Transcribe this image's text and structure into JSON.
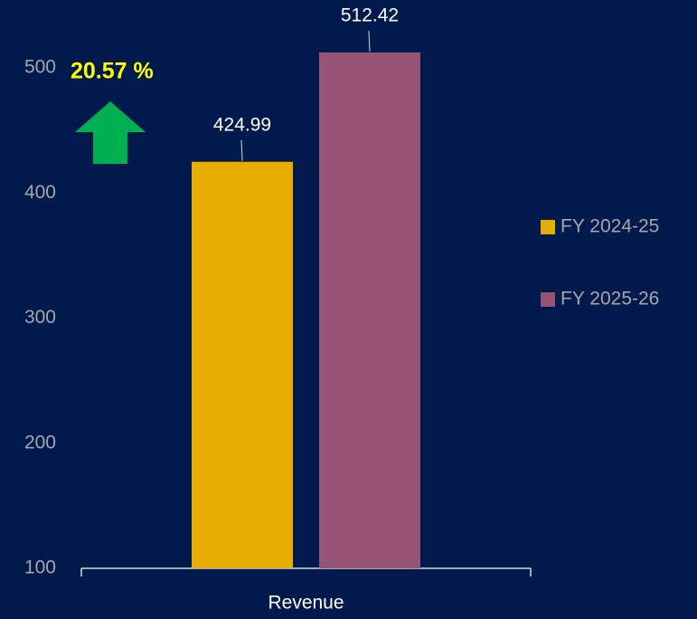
{
  "chart_data": {
    "type": "bar",
    "categories": [
      "Revenue"
    ],
    "series": [
      {
        "name": "FY 2024-25",
        "color": "#e6ac00",
        "values": [
          424.99
        ]
      },
      {
        "name": "FY 2025-26",
        "color": "#985474",
        "values": [
          512.42
        ]
      }
    ],
    "ylim": [
      100,
      550
    ],
    "yticks": [
      100,
      200,
      300,
      400,
      500
    ],
    "annotation": "20.57 %",
    "legend": "right"
  }
}
